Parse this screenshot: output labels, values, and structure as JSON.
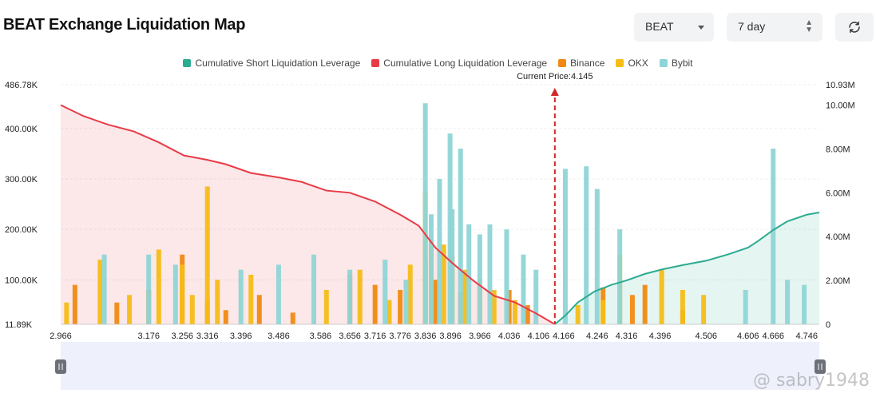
{
  "header": {
    "title": "BEAT Exchange Liquidation Map",
    "coin_select": "BEAT",
    "range_select": "7 day",
    "refresh_icon": "refresh-icon"
  },
  "legend": [
    {
      "label": "Cumulative Short Liquidation Leverage",
      "color": "#2bab91"
    },
    {
      "label": "Cumulative Long Liquidation Leverage",
      "color": "#e83b46"
    },
    {
      "label": "Binance",
      "color": "#f08a12"
    },
    {
      "label": "OKX",
      "color": "#f6bd16"
    },
    {
      "label": "Bybit",
      "color": "#8fd5d6"
    }
  ],
  "watermark": "@ sabry1948",
  "chart_data": {
    "type": "bar",
    "current_price_label": "Current Price:4.145",
    "current_price": 4.145,
    "x_range": [
      2.966,
      4.776
    ],
    "x_ticks": [
      "2.966",
      "3.176",
      "3.256",
      "3.316",
      "3.396",
      "3.486",
      "3.586",
      "3.656",
      "3.716",
      "3.776",
      "3.836",
      "3.896",
      "3.966",
      "4.036",
      "4.106",
      "4.166",
      "4.246",
      "4.316",
      "4.396",
      "4.506",
      "4.606",
      "4.666",
      "4.746"
    ],
    "y_left": {
      "min": 11890,
      "max": 486780,
      "ticks": [
        "486.78K",
        "400.00K",
        "300.00K",
        "200.00K",
        "100.00K",
        "11.89K"
      ]
    },
    "y_right": {
      "min": 0,
      "max": 10930000,
      "ticks": [
        "10.93M",
        "10.00M",
        "8.00M",
        "6.00M",
        "4.00M",
        "2.00M",
        "0"
      ]
    },
    "series": [
      {
        "name": "Cumulative Long Liquidation Leverage",
        "type": "area",
        "unit": "M",
        "x": [
          2.966,
          3.02,
          3.08,
          3.14,
          3.2,
          3.26,
          3.316,
          3.36,
          3.42,
          3.486,
          3.54,
          3.6,
          3.656,
          3.716,
          3.776,
          3.82,
          3.86,
          3.9,
          3.95,
          4.0,
          4.05,
          4.1,
          4.145
        ],
        "values": [
          10.0,
          9.5,
          9.1,
          8.8,
          8.3,
          7.7,
          7.5,
          7.3,
          6.9,
          6.7,
          6.5,
          6.1,
          6.0,
          5.6,
          5.0,
          4.5,
          3.5,
          2.8,
          2.0,
          1.3,
          1.0,
          0.5,
          0.0
        ]
      },
      {
        "name": "Cumulative Short Liquidation Leverage",
        "type": "area",
        "unit": "M",
        "x": [
          4.145,
          4.17,
          4.2,
          4.24,
          4.28,
          4.316,
          4.36,
          4.4,
          4.45,
          4.506,
          4.56,
          4.606,
          4.63,
          4.666,
          4.7,
          4.746,
          4.776
        ],
        "values": [
          0.0,
          0.4,
          1.0,
          1.5,
          1.8,
          2.0,
          2.3,
          2.5,
          2.7,
          2.9,
          3.2,
          3.5,
          3.8,
          4.3,
          4.7,
          5.0,
          5.1
        ]
      },
      {
        "name": "Binance",
        "unit": "K",
        "x": [
          3.0,
          3.1,
          3.176,
          3.256,
          3.316,
          3.36,
          3.44,
          3.52,
          3.656,
          3.716,
          3.776,
          3.836,
          3.86,
          3.92,
          4.036,
          4.08,
          4.26,
          4.33,
          4.36,
          4.45
        ],
        "values": [
          90,
          55,
          80,
          150,
          60,
          40,
          70,
          35,
          110,
          90,
          80,
          140,
          100,
          75,
          80,
          50,
          85,
          70,
          90,
          40
        ]
      },
      {
        "name": "OKX",
        "unit": "K",
        "x": [
          2.98,
          3.06,
          3.13,
          3.2,
          3.256,
          3.28,
          3.316,
          3.34,
          3.42,
          3.6,
          3.68,
          3.75,
          3.8,
          3.836,
          3.85,
          3.88,
          3.9,
          3.93,
          3.966,
          4.0,
          4.05,
          4.2,
          4.26,
          4.3,
          4.4,
          4.45,
          4.5
        ],
        "values": [
          55,
          140,
          70,
          160,
          130,
          70,
          285,
          100,
          110,
          80,
          120,
          60,
          130,
          275,
          180,
          170,
          150,
          120,
          100,
          80,
          60,
          50,
          60,
          150,
          120,
          80,
          70
        ]
      },
      {
        "name": "Bybit",
        "unit": "K",
        "x": [
          3.07,
          3.176,
          3.24,
          3.396,
          3.486,
          3.57,
          3.656,
          3.74,
          3.79,
          3.836,
          3.85,
          3.87,
          3.895,
          3.9,
          3.92,
          3.94,
          3.966,
          3.99,
          4.03,
          4.07,
          4.1,
          4.17,
          4.22,
          4.246,
          4.3,
          4.6,
          4.666,
          4.7,
          4.74
        ],
        "values": [
          150,
          150,
          130,
          120,
          130,
          150,
          120,
          140,
          100,
          450,
          230,
          300,
          390,
          240,
          360,
          210,
          190,
          210,
          200,
          150,
          120,
          320,
          325,
          280,
          200,
          80,
          360,
          100,
          90
        ]
      }
    ]
  }
}
